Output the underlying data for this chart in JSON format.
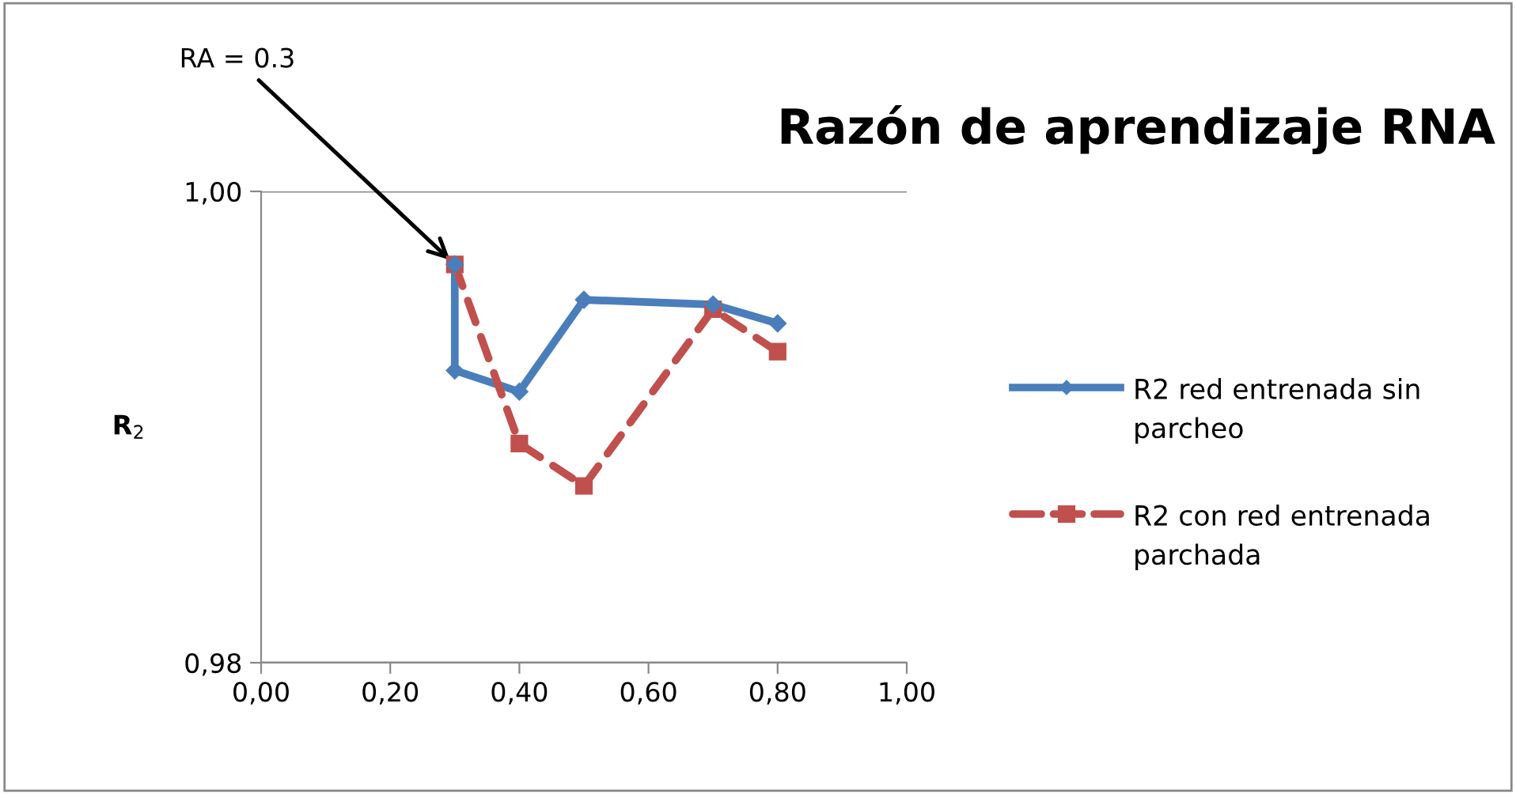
{
  "chart_data": {
    "type": "line",
    "title": "Razón de aprendizaje RNA",
    "ylabel": "R$_{2}$",
    "xlim": [
      0,
      1
    ],
    "xticks": [
      {
        "value": 0,
        "label": "0,00"
      },
      {
        "value": 0.2,
        "label": "0,20"
      },
      {
        "value": 0.4,
        "label": "0,40"
      },
      {
        "value": 0.6,
        "label": "0,60"
      },
      {
        "value": 0.8,
        "label": "0,80"
      },
      {
        "value": 1,
        "label": "1,00"
      }
    ],
    "ylim": [
      0.98,
      1.0
    ],
    "yticks": [
      {
        "value": 0.98,
        "label": "0,98"
      },
      {
        "value": 1.0,
        "label": "1,00"
      }
    ],
    "grid": "y",
    "legend": "right",
    "annotations": [
      {
        "text": "RA = 0.3",
        "x": 0.3,
        "y": 0.9969
      }
    ],
    "series": [
      {
        "name": "R2 red entrenada sin parcheo",
        "color": "#4a7ebb",
        "marker": "diamond",
        "line_style": "solid",
        "x": [
          0.3,
          0.3,
          0.4,
          0.5,
          0.7,
          0.8
        ],
        "values": [
          0.9969,
          0.9924,
          0.9915,
          0.9954,
          0.9952,
          0.9944
        ]
      },
      {
        "name": "R2 con red entrenada parchada",
        "color": "#c0504d",
        "marker": "square",
        "line_style": "dashed",
        "x": [
          0.3,
          0.4,
          0.5,
          0.7,
          0.8
        ],
        "values": [
          0.9969,
          0.9893,
          0.9875,
          0.995,
          0.9932
        ]
      }
    ]
  }
}
